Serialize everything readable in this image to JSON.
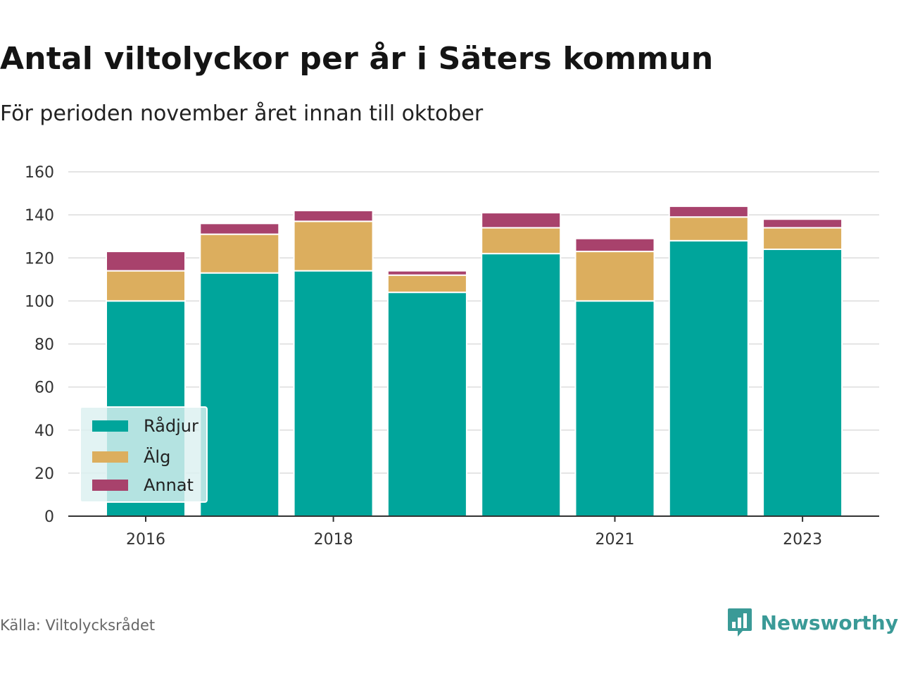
{
  "title": "Antal viltolyckor per år i Säters kommun",
  "subtitle": "För perioden november året innan till oktober",
  "source": "Källa: Viltolycksrådet",
  "brand": {
    "name": "Newsworthy",
    "icon": "bar-chart-logo-icon",
    "color": "#3a9a97"
  },
  "chart_data": {
    "type": "bar",
    "stacked": true,
    "categories": [
      "2016",
      "2017",
      "2018",
      "2019",
      "2020",
      "2021",
      "2022",
      "2023"
    ],
    "x_tick_labels": [
      "2016",
      "",
      "2018",
      "",
      "",
      "2021",
      "",
      "2023"
    ],
    "series": [
      {
        "name": "Rådjur",
        "color": "#00a59b",
        "values": [
          100,
          113,
          114,
          104,
          122,
          100,
          128,
          124
        ]
      },
      {
        "name": "Älg",
        "color": "#dcae5e",
        "values": [
          14,
          18,
          23,
          8,
          12,
          23,
          11,
          10
        ]
      },
      {
        "name": "Annat",
        "color": "#a8426c",
        "values": [
          9,
          5,
          5,
          2,
          7,
          6,
          5,
          4
        ]
      }
    ],
    "ylim": [
      0,
      160
    ],
    "yticks": [
      0,
      20,
      40,
      60,
      80,
      100,
      120,
      140,
      160
    ],
    "xlabel": "",
    "ylabel": "",
    "grid": true,
    "legend_position": "bottom-left"
  }
}
